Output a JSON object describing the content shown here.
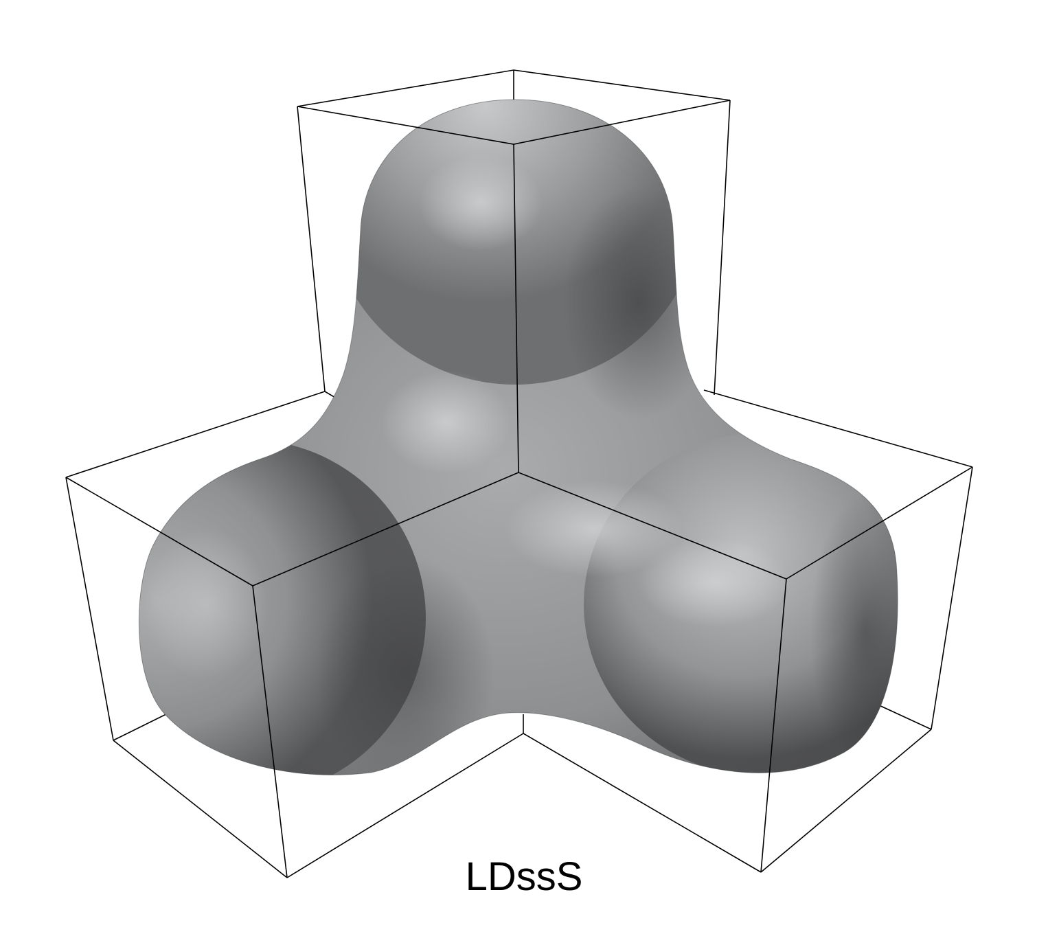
{
  "caption": "LDssS",
  "colors": {
    "background": "#ffffff",
    "surface_base": "#8f9193",
    "surface_light": "#c4c6c8",
    "surface_dark": "#3a3a3b",
    "wireframe": "#000000"
  },
  "icons": {
    "surface": "trilobed-isosurface-icon",
    "box": "cube-wireframe-icon"
  }
}
